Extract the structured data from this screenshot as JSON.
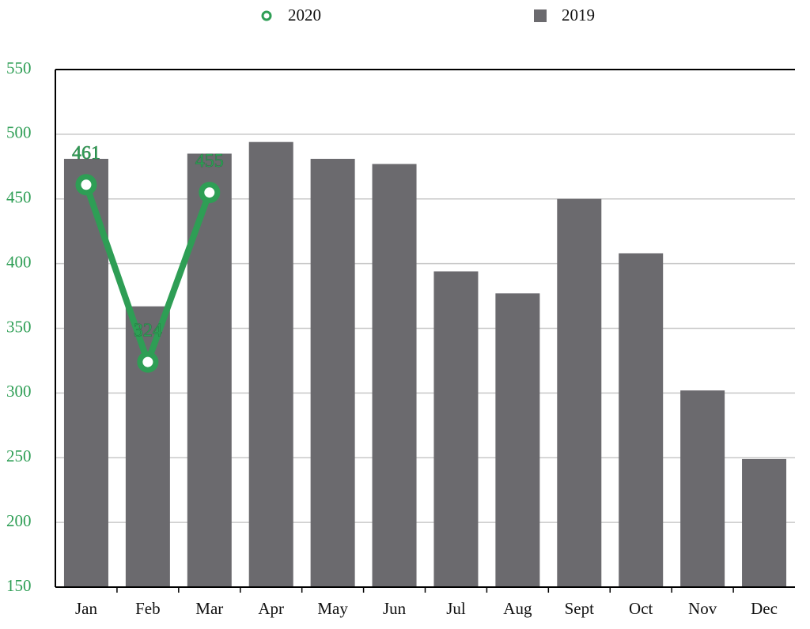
{
  "chart_data": {
    "type": "combo",
    "categories": [
      "Jan",
      "Feb",
      "Mar",
      "Apr",
      "May",
      "Jun",
      "Jul",
      "Aug",
      "Sept",
      "Oct",
      "Nov",
      "Dec"
    ],
    "series": [
      {
        "name": "2020",
        "type": "line",
        "color": "#2e9e55",
        "values": [
          461,
          324,
          455,
          null,
          null,
          null,
          null,
          null,
          null,
          null,
          null,
          null
        ]
      },
      {
        "name": "2019",
        "type": "bar",
        "color": "#6b6a6e",
        "values": [
          481,
          367,
          485,
          494,
          481,
          477,
          394,
          377,
          450,
          408,
          302,
          249
        ]
      }
    ],
    "ylim": [
      150,
      550
    ],
    "yticks": [
      150,
      200,
      250,
      300,
      350,
      400,
      450,
      500,
      550
    ],
    "grid": true,
    "legend": "top"
  }
}
